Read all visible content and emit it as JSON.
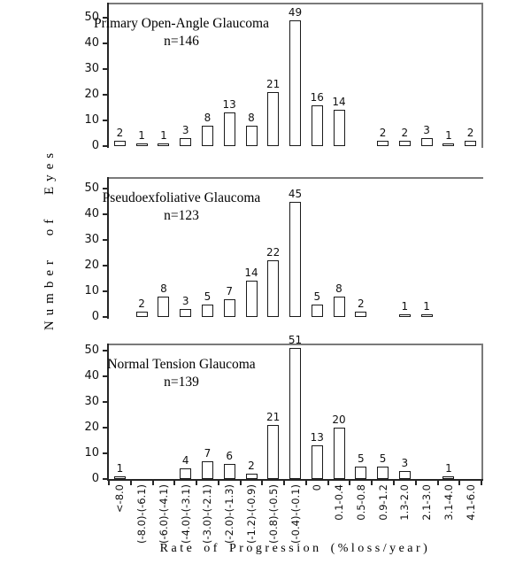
{
  "figure": {
    "y_axis_title": "Number of Eyes",
    "x_axis_title": "Rate of Progression (%loss/year)",
    "background": "#ffffff",
    "box_border_color": "#7a7a7a",
    "axis_color": "#262626",
    "bar_fill": "#ffffff",
    "bar_border": "#1a1a1a"
  },
  "chart_data": [
    {
      "type": "bar",
      "title": "Primary Open-Angle Glaucoma",
      "n_label": "n=146",
      "n": 146,
      "categories": [
        "<-8.0",
        "(-8.0)-(-6.1)",
        "(-6.0)-(-4.1)",
        "(-4.0)-(-3.1)",
        "(-3.0)-(-2.1)",
        "(-2.0)-(-1.3)",
        "(-1.2)-(-0.9)",
        "(-0.8)-(-0.5)",
        "(-0.4)-(-0.1)",
        "0",
        "0.1-0.4",
        "0.5-0.8",
        "0.9-1.2",
        "1.3-2.0",
        "2.1-3.0",
        "3.1-4.0",
        "4.1-6.0"
      ],
      "values": [
        2,
        1,
        1,
        3,
        8,
        13,
        8,
        21,
        49,
        16,
        14,
        0,
        2,
        2,
        3,
        1,
        2
      ],
      "xlabel": "Rate of Progression (%loss/year)",
      "ylabel": "Number of Eyes",
      "yticks": [
        0,
        10,
        20,
        30,
        40,
        50
      ],
      "ylim": [
        0,
        56
      ],
      "grid": false,
      "legend": false
    },
    {
      "type": "bar",
      "title": "Pseudoexfoliative Glaucoma",
      "n_label": "n=123",
      "n": 123,
      "categories": [
        "<-8.0",
        "(-8.0)-(-6.1)",
        "(-6.0)-(-4.1)",
        "(-4.0)-(-3.1)",
        "(-3.0)-(-2.1)",
        "(-2.0)-(-1.3)",
        "(-1.2)-(-0.9)",
        "(-0.8)-(-0.5)",
        "(-0.4)-(-0.1)",
        "0",
        "0.1-0.4",
        "0.5-0.8",
        "0.9-1.2",
        "1.3-2.0",
        "2.1-3.0",
        "3.1-4.0",
        "4.1-6.0"
      ],
      "values": [
        0,
        2,
        8,
        3,
        5,
        7,
        14,
        22,
        45,
        5,
        8,
        2,
        0,
        1,
        1,
        0,
        0
      ],
      "xlabel": "Rate of Progression (%loss/year)",
      "ylabel": "Number of Eyes",
      "yticks": [
        0,
        10,
        20,
        30,
        40,
        50
      ],
      "ylim": [
        0,
        55
      ],
      "grid": false,
      "legend": false
    },
    {
      "type": "bar",
      "title": "Normal Tension Glaucoma",
      "n_label": "n=139",
      "n": 139,
      "categories": [
        "<-8.0",
        "(-8.0)-(-6.1)",
        "(-6.0)-(-4.1)",
        "(-4.0)-(-3.1)",
        "(-3.0)-(-2.1)",
        "(-2.0)-(-1.3)",
        "(-1.2)-(-0.9)",
        "(-0.8)-(-0.5)",
        "(-0.4)-(-0.1)",
        "0",
        "0.1-0.4",
        "0.5-0.8",
        "0.9-1.2",
        "1.3-2.0",
        "2.1-3.0",
        "3.1-4.0",
        "4.1-6.0"
      ],
      "values": [
        1,
        0,
        0,
        4,
        7,
        6,
        2,
        21,
        51,
        13,
        20,
        5,
        5,
        3,
        0,
        1,
        0
      ],
      "xlabel": "Rate of Progression (%loss/year)",
      "ylabel": "Number of Eyes",
      "yticks": [
        0,
        10,
        20,
        30,
        40,
        50
      ],
      "ylim": [
        0,
        53
      ],
      "grid": false,
      "legend": false
    }
  ]
}
